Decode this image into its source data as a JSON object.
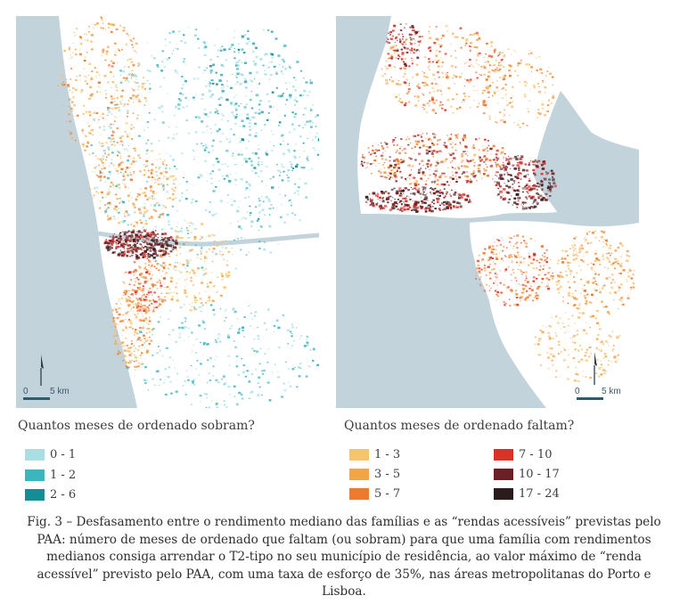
{
  "maps": [
    {
      "id": "porto",
      "scale_zero": "0",
      "scale_label": "5 km",
      "legend_title": "Quantos meses de ordenado sobram?"
    },
    {
      "id": "lisboa",
      "scale_zero": "0",
      "scale_label": "5 km",
      "legend_title": "Quantos meses de ordenado faltam?"
    }
  ],
  "legend_left": [
    {
      "label": "0 - 1",
      "color": "#a9dfe2"
    },
    {
      "label": "1 - 2",
      "color": "#3cb6bd"
    },
    {
      "label": "2 - 6",
      "color": "#128e94"
    }
  ],
  "legend_right": [
    {
      "label": "1 - 3",
      "color": "#f6c46a"
    },
    {
      "label": "3 - 5",
      "color": "#f3a445"
    },
    {
      "label": "5 - 7",
      "color": "#ec7a2f"
    },
    {
      "label": "7 - 10",
      "color": "#d9322a"
    },
    {
      "label": "10 - 17",
      "color": "#6b1f26"
    },
    {
      "label": "17 - 24",
      "color": "#2c1b1d"
    }
  ],
  "colors": {
    "water": "#c3d3dc",
    "land": "#ffffff"
  },
  "caption": {
    "lines": [
      "Fig. 3 – Desfasamento entre o rendimento mediano das famílias e as “rendas acessíveis” previstas pelo",
      "PAA: número de meses de ordenado que faltam (ou sobram) para que uma família com rendimentos",
      "medianos consiga arrendar o T2-tipo no seu município de residência, ao valor máximo de “renda",
      "acessível” previsto pelo PAA, com uma taxa de esforço de 35%, nas áreas metropolitanas do Porto e",
      "Lisboa."
    ]
  }
}
